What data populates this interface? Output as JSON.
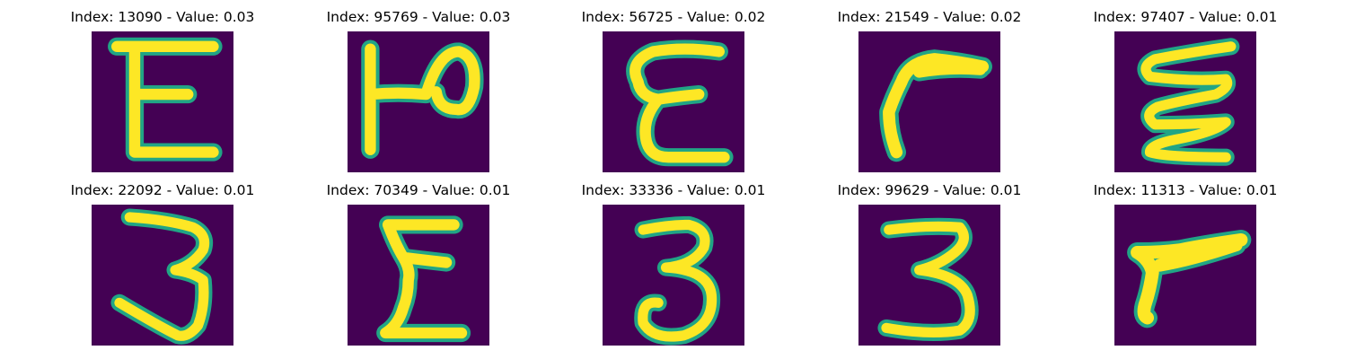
{
  "colors": {
    "background": "#440154",
    "stroke_core": "#fde725",
    "stroke_edge": "#21a585"
  },
  "panels": [
    {
      "index": "13090",
      "value": "0.03",
      "title": "Index: 13090 - Value: 0.03",
      "glyph": "E"
    },
    {
      "index": "95769",
      "value": "0.03",
      "title": "Index: 95769 - Value: 0.03",
      "glyph": "P-like"
    },
    {
      "index": "56725",
      "value": "0.02",
      "title": "Index: 56725 - Value: 0.02",
      "glyph": "E"
    },
    {
      "index": "21549",
      "value": "0.02",
      "title": "Index: 21549 - Value: 0.02",
      "glyph": "r-like"
    },
    {
      "index": "97407",
      "value": "0.01",
      "title": "Index: 97407 - Value: 0.01",
      "glyph": "sigma-like"
    },
    {
      "index": "22092",
      "value": "0.01",
      "title": "Index: 22092 - Value: 0.01",
      "glyph": "3"
    },
    {
      "index": "70349",
      "value": "0.01",
      "title": "Index: 70349 - Value: 0.01",
      "glyph": "E"
    },
    {
      "index": "33336",
      "value": "0.01",
      "title": "Index: 33336 - Value: 0.01",
      "glyph": "3"
    },
    {
      "index": "99629",
      "value": "0.01",
      "title": "Index: 99629 - Value: 0.01",
      "glyph": "3"
    },
    {
      "index": "11313",
      "value": "0.01",
      "title": "Index: 11313 - Value: 0.01",
      "glyph": "r-like"
    }
  ]
}
